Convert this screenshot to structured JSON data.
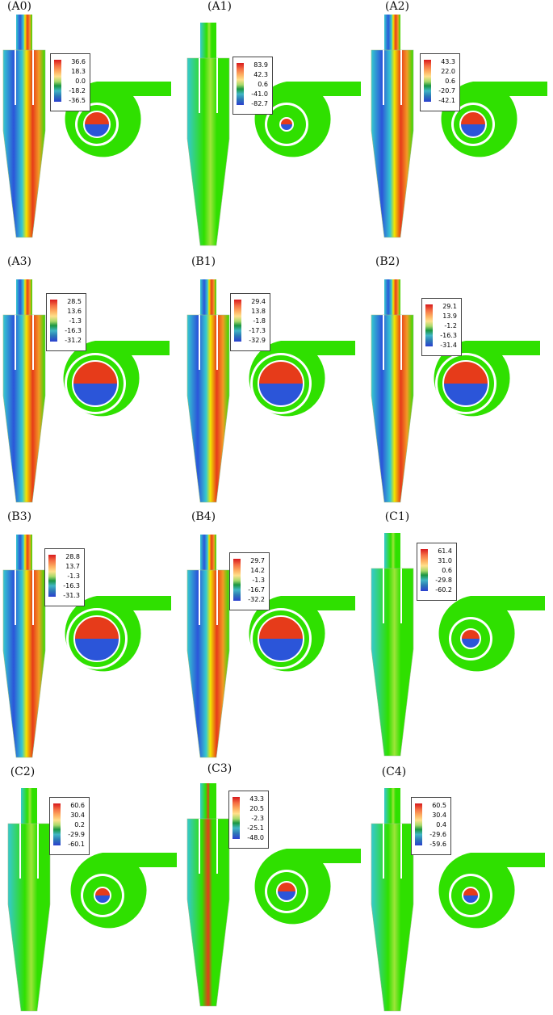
{
  "panels": [
    {
      "id": "A0",
      "label": "(A0)",
      "legend": [
        "36.6",
        "18.3",
        "0.0",
        "-18.2",
        "-36.5"
      ]
    },
    {
      "id": "A1",
      "label": "(A1)",
      "legend": [
        "83.9",
        "42.3",
        "0.6",
        "-41.0",
        "-82.7"
      ]
    },
    {
      "id": "A2",
      "label": "(A2)",
      "legend": [
        "43.3",
        "22.0",
        "0.6",
        "-20.7",
        "-42.1"
      ]
    },
    {
      "id": "A3",
      "label": "(A3)",
      "legend": [
        "28.5",
        "13.6",
        "-1.3",
        "-16.3",
        "-31.2"
      ]
    },
    {
      "id": "B1",
      "label": "(B1)",
      "legend": [
        "29.4",
        "13.8",
        "-1.8",
        "-17.3",
        "-32.9"
      ]
    },
    {
      "id": "B2",
      "label": "(B2)",
      "legend": [
        "29.1",
        "13.9",
        "-1.2",
        "-16.3",
        "-31.4"
      ]
    },
    {
      "id": "B3",
      "label": "(B3)",
      "legend": [
        "28.8",
        "13.7",
        "-1.3",
        "-16.3",
        "-31.3"
      ]
    },
    {
      "id": "B4",
      "label": "(B4)",
      "legend": [
        "29.7",
        "14.2",
        "-1.3",
        "-16.7",
        "-32.2"
      ]
    },
    {
      "id": "C1",
      "label": "(C1)",
      "legend": [
        "61.4",
        "31.0",
        "0.6",
        "-29.8",
        "-60.2"
      ]
    },
    {
      "id": "C2",
      "label": "(C2)",
      "legend": [
        "60.6",
        "30.4",
        "0.2",
        "-29.9",
        "-60.1"
      ]
    },
    {
      "id": "C3",
      "label": "(C3)",
      "legend": [
        "43.3",
        "20.5",
        "-2.3",
        "-25.1",
        "-48.0"
      ]
    },
    {
      "id": "C4",
      "label": "(C4)",
      "legend": [
        "60.5",
        "30.4",
        "0.4",
        "-29.6",
        "-59.6"
      ]
    }
  ],
  "colors": {
    "green": "#2fe000",
    "red": "#e63b1a",
    "blue": "#2b55d9",
    "cyan": "#36c9d0",
    "yellow": "#f2e600",
    "orange": "#f39a25"
  }
}
